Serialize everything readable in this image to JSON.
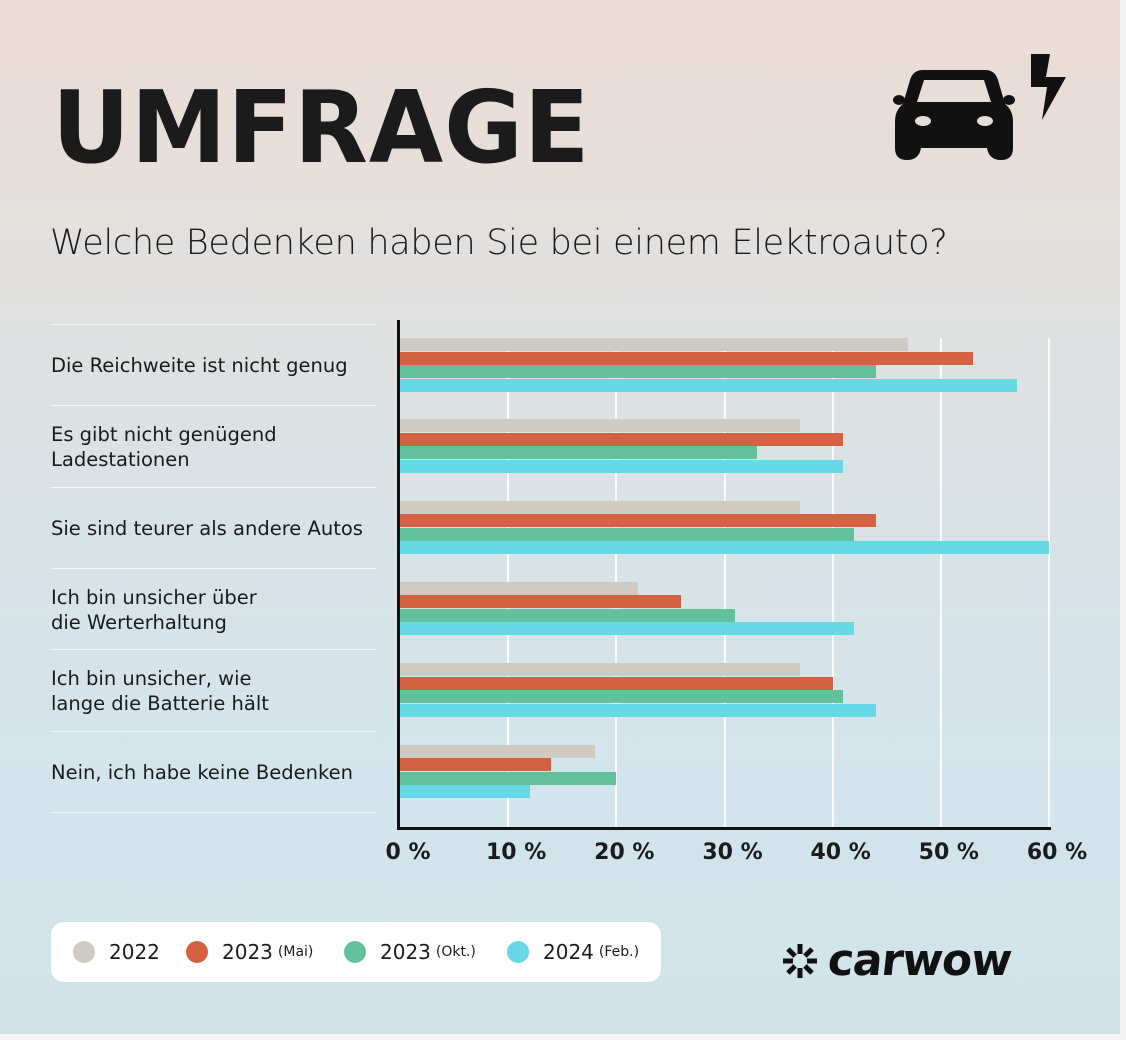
{
  "header": {
    "title": "UMFRAGE",
    "subtitle": "Welche Bedenken haben Sie bei einem Elektroauto?",
    "icons": [
      "car-icon",
      "lightning-bolt-icon"
    ]
  },
  "colors": {
    "series_2022": "#cfcbc2",
    "series_2023_mai": "#d36142",
    "series_2023_okt": "#63c09c",
    "series_2024_feb": "#67d8e5",
    "text": "#1b1b1b",
    "axis": "#111111"
  },
  "legend": {
    "items": [
      {
        "year": "2022",
        "sub": "",
        "color": "#cfcbc2"
      },
      {
        "year": "2023",
        "sub": "(Mai)",
        "color": "#d36142"
      },
      {
        "year": "2023",
        "sub": "(Okt.)",
        "color": "#63c09c"
      },
      {
        "year": "2024",
        "sub": "(Feb.)",
        "color": "#67d8e5"
      }
    ]
  },
  "brand": {
    "name": "carwow",
    "icon": "carwow-logo-icon"
  },
  "chart_data": {
    "type": "bar",
    "orientation": "horizontal",
    "title": "Welche Bedenken haben Sie bei einem Elektroauto?",
    "header": "UMFRAGE",
    "xlabel": "",
    "ylabel": "",
    "xlim": [
      0,
      60
    ],
    "x_ticks": [
      "0 %",
      "10 %",
      "20 %",
      "30 %",
      "40 %",
      "50 %",
      "60 %"
    ],
    "grid": true,
    "legend_position": "bottom-left",
    "unit": "%",
    "categories": [
      "Die Reichweite ist nicht genug",
      "Es gibt nicht genügend Ladestationen",
      "Sie sind teurer als andere Autos",
      "Ich bin unsicher über die Werterhaltung",
      "Ich bin unsicher, wie lange die Batterie hält",
      "Nein, ich habe keine Bedenken"
    ],
    "category_lines": [
      [
        "Die Reichweite ist nicht genug"
      ],
      [
        "Es gibt nicht genügend",
        "Ladestationen"
      ],
      [
        "Sie sind teurer als andere Autos"
      ],
      [
        "Ich bin unsicher über",
        "die Werterhaltung"
      ],
      [
        "Ich bin unsicher, wie",
        "lange die Batterie hält"
      ],
      [
        "Nein, ich habe keine Bedenken"
      ]
    ],
    "series": [
      {
        "name": "2022",
        "color": "#cfcbc2",
        "values": [
          47,
          37,
          37,
          22,
          37,
          18
        ]
      },
      {
        "name": "2023 (Mai)",
        "color": "#d36142",
        "values": [
          53,
          41,
          44,
          26,
          40,
          14
        ]
      },
      {
        "name": "2023 (Okt.)",
        "color": "#63c09c",
        "values": [
          44,
          33,
          42,
          31,
          41,
          20
        ]
      },
      {
        "name": "2024 (Feb.)",
        "color": "#67d8e5",
        "values": [
          57,
          41,
          60,
          42,
          44,
          12
        ]
      }
    ]
  }
}
